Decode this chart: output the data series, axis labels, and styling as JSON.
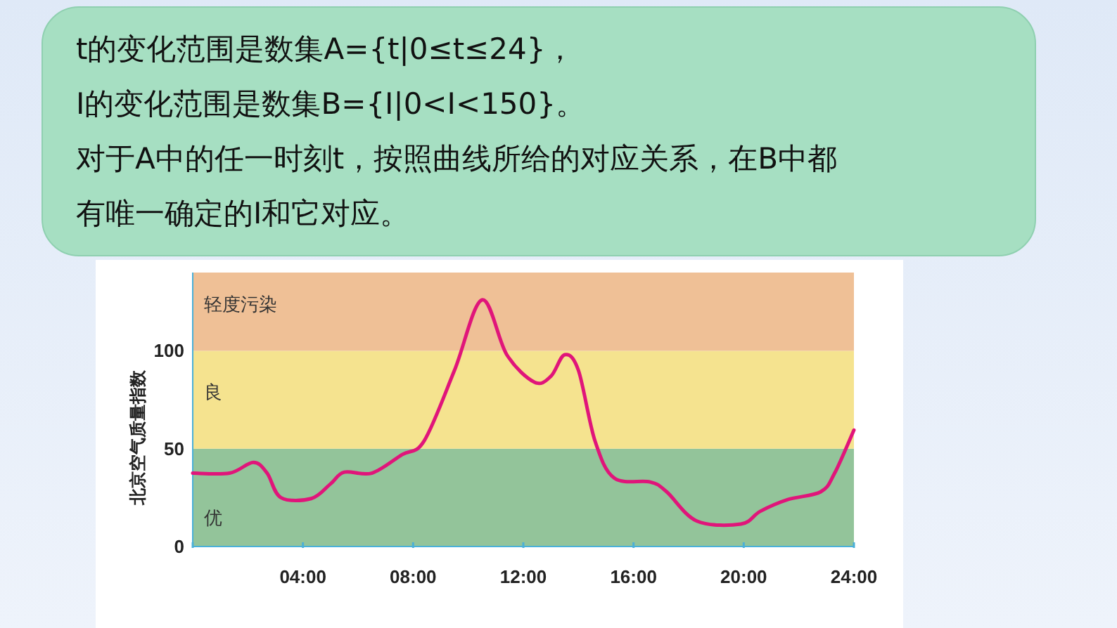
{
  "chart_data": {
    "type": "line",
    "ylabel": "北京空气质量指数",
    "annotations": [
      "t的变化范围是数集A={t|0≤t≤24}，",
      "I的变化范围是数集B={I|0<I<150}。",
      "对于A中的任一时刻t，按照曲线所给的对应关系，在B中都",
      "有唯一确定的I和它对应。"
    ],
    "series": [
      {
        "color": "#e0157a",
        "x": [
          0,
          1.34,
          2.2,
          2.7,
          3.2,
          4.3,
          5.0,
          5.5,
          6.5,
          7.6,
          8.4,
          9.5,
          10.5,
          11.4,
          12.4,
          13.0,
          13.5,
          14.0,
          14.6,
          15.3,
          16.6,
          17.2,
          18.3,
          19.9,
          20.6,
          21.6,
          22.8,
          23.3,
          24
        ],
        "values": [
          37.5,
          37.5,
          43,
          37.5,
          25,
          24.5,
          32,
          38,
          37.5,
          47,
          54,
          90,
          126,
          98,
          84,
          87,
          98,
          90,
          54,
          35,
          33,
          28,
          13,
          11.5,
          18,
          24,
          28,
          37.5,
          59.5
        ]
      }
    ],
    "xlim": [
      0,
      24
    ],
    "xticks": [
      {
        "value": 0,
        "label": null
      },
      {
        "value": 4,
        "label": "04:00"
      },
      {
        "value": 8,
        "label": "08:00"
      },
      {
        "value": 12,
        "label": "12:00"
      },
      {
        "value": 16,
        "label": "16:00"
      },
      {
        "value": 20,
        "label": "20:00"
      },
      {
        "value": 24,
        "label": "24:00"
      }
    ],
    "ylim": [
      0,
      140
    ],
    "yticks": [
      0,
      50,
      100
    ],
    "bands": [
      {
        "axis": "y",
        "from": 0,
        "to": 50,
        "label": "优",
        "color": "#93c49a"
      },
      {
        "axis": "y",
        "from": 50,
        "to": 100,
        "label": "良",
        "color": "#f5e38f"
      },
      {
        "axis": "y",
        "from": 100,
        "to": 140,
        "label": "轻度污染",
        "color": "#efc096"
      }
    ],
    "grid": false,
    "line_style": "solid",
    "marker": "none"
  }
}
